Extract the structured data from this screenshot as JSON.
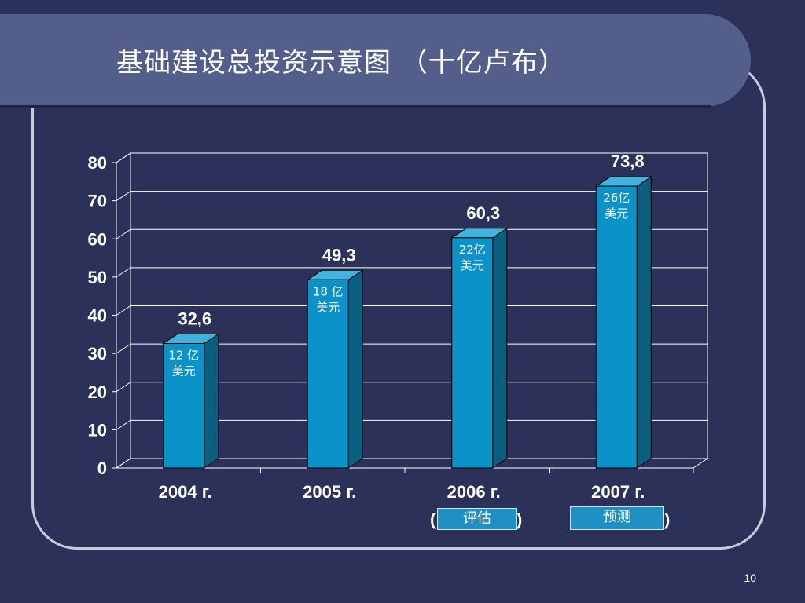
{
  "slide": {
    "title": "基础建设总投资示意图 （十亿卢布）",
    "page_number": "10"
  },
  "chart_data": {
    "type": "bar",
    "categories": [
      "2004 г.",
      "2005 г.",
      "2006 г.",
      "2007 г."
    ],
    "values": [
      32.6,
      49.3,
      60.3,
      73.8
    ],
    "value_labels": [
      "32,6",
      "49,3",
      "60,3",
      "73,8"
    ],
    "bar_annotations": [
      [
        "12 亿",
        "美元"
      ],
      [
        "18 亿",
        "美元"
      ],
      [
        "22亿",
        "美元"
      ],
      [
        "26亿",
        "美元"
      ]
    ],
    "ylim": [
      0,
      80
    ],
    "yticks": [
      "0",
      "10",
      "20",
      "30",
      "40",
      "50",
      "60",
      "70",
      "80"
    ],
    "grid": true,
    "title": "",
    "xlabel": "",
    "ylabel": "",
    "colors": {
      "bar_front": "#0b93c9",
      "bar_side": "#0a5f7e",
      "bar_top": "#3fb4df",
      "grid": "#ffffff"
    }
  },
  "category_notes": {
    "estimate": "评估",
    "forecast": "预测",
    "open_paren": "(",
    "close_paren": ")"
  }
}
